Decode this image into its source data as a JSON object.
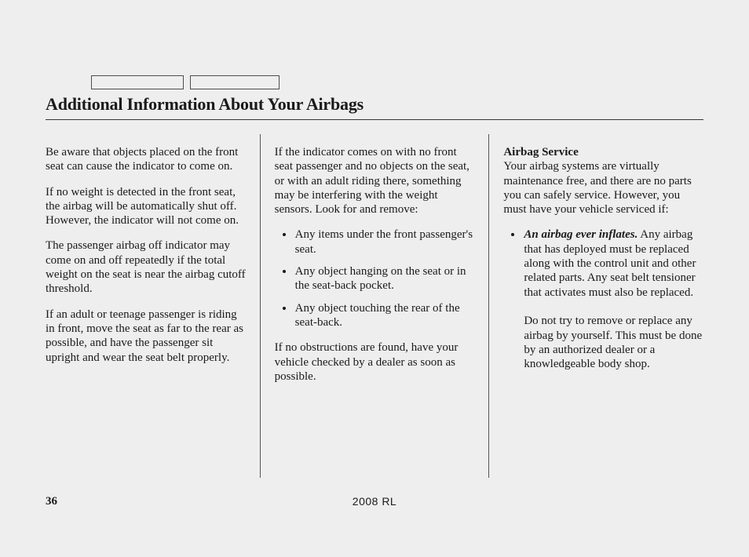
{
  "page": {
    "title": "Additional Information About Your Airbags",
    "page_number": "36",
    "model_year": "2008  RL",
    "colors": {
      "background": "#eeeeee",
      "text": "#1a1a1a",
      "rule": "#333333",
      "divider": "#555555",
      "tab_border": "#4d4d4d"
    },
    "typography": {
      "body_family": "Times New Roman",
      "body_size_pt": 11,
      "title_size_pt": 16,
      "title_weight": "bold",
      "footer_family": "Arial",
      "footer_size_pt": 10
    }
  },
  "column1": {
    "p1": "Be aware that objects placed on the front seat can cause the indicator to come on.",
    "p2": "If no weight is detected in the front seat, the airbag will be automatically shut off. However, the indicator will not come on.",
    "p3": "The passenger airbag off indicator may come on and off repeatedly if the total weight on the seat is near the airbag cutoff threshold.",
    "p4": "If an adult or teenage passenger is riding in front, move the seat as far to the rear as possible, and have the passenger sit upright and wear the seat belt properly."
  },
  "column2": {
    "p1": "If the indicator comes on with no front seat passenger and no objects on the seat, or with an adult riding there, something may be interfering with the weight sensors. Look for and remove:",
    "bullets": [
      "Any items under the front passenger's seat.",
      "Any object hanging on the seat or in the seat-back pocket.",
      "Any object touching the rear of the seat-back."
    ],
    "p2": "If no obstructions are found, have your vehicle checked by a dealer as soon as possible."
  },
  "column3": {
    "heading": "Airbag Service",
    "p1": "Your airbag systems are virtually maintenance free, and there are no parts you can safely service. However, you must have your vehicle serviced if:",
    "bullet_lead": "An airbag ever inflates.",
    "bullet_rest": " Any airbag that has deployed must be replaced along with the control unit and other related parts. Any seat belt tensioner that activates must also be replaced.",
    "p2": "Do not try to remove or replace any airbag by yourself. This must be done by an authorized dealer or a knowledgeable body shop."
  }
}
